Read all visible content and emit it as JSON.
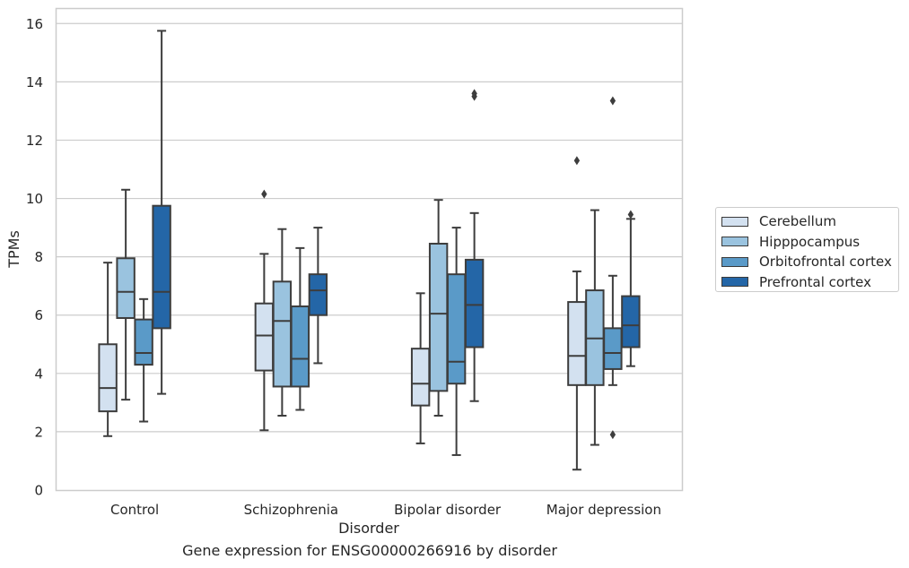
{
  "chart_data": {
    "type": "box",
    "title": "Gene expression for ENSG00000266916 by disorder",
    "xlabel": "Disorder",
    "ylabel": "TPMs",
    "ylim": [
      0,
      16.5
    ],
    "yticks": [
      0,
      2,
      4,
      6,
      8,
      10,
      12,
      14,
      16
    ],
    "categories": [
      "Control",
      "Schizophrenia",
      "Bipolar disorder",
      "Major depression"
    ],
    "grid": "horizontal",
    "legend_position": "right",
    "series": [
      {
        "name": "Cerebellum",
        "color": "#d3e1f0",
        "boxes": [
          {
            "whislo": 1.85,
            "q1": 2.7,
            "med": 3.5,
            "q3": 5.0,
            "whishi": 7.8,
            "fliers": []
          },
          {
            "whislo": 2.05,
            "q1": 4.1,
            "med": 5.3,
            "q3": 6.4,
            "whishi": 8.1,
            "fliers": [
              10.15
            ]
          },
          {
            "whislo": 1.6,
            "q1": 2.9,
            "med": 3.65,
            "q3": 4.85,
            "whishi": 6.75,
            "fliers": []
          },
          {
            "whislo": 0.7,
            "q1": 3.6,
            "med": 4.6,
            "q3": 6.45,
            "whishi": 7.5,
            "fliers": [
              11.3
            ]
          }
        ]
      },
      {
        "name": "Hipppocampus",
        "color": "#9ac3df",
        "boxes": [
          {
            "whislo": 3.1,
            "q1": 5.9,
            "med": 6.8,
            "q3": 7.95,
            "whishi": 10.3,
            "fliers": []
          },
          {
            "whislo": 2.55,
            "q1": 3.55,
            "med": 5.8,
            "q3": 7.15,
            "whishi": 8.95,
            "fliers": []
          },
          {
            "whislo": 2.55,
            "q1": 3.4,
            "med": 6.05,
            "q3": 8.45,
            "whishi": 9.95,
            "fliers": []
          },
          {
            "whislo": 1.55,
            "q1": 3.6,
            "med": 5.2,
            "q3": 6.85,
            "whishi": 9.6,
            "fliers": []
          }
        ]
      },
      {
        "name": "Orbitofrontal cortex",
        "color": "#5a9ac8",
        "boxes": [
          {
            "whislo": 2.35,
            "q1": 4.3,
            "med": 4.7,
            "q3": 5.85,
            "whishi": 6.55,
            "fliers": []
          },
          {
            "whislo": 2.75,
            "q1": 3.55,
            "med": 4.5,
            "q3": 6.3,
            "whishi": 8.3,
            "fliers": []
          },
          {
            "whislo": 1.2,
            "q1": 3.65,
            "med": 4.4,
            "q3": 7.4,
            "whishi": 9.0,
            "fliers": []
          },
          {
            "whislo": 3.6,
            "q1": 4.15,
            "med": 4.7,
            "q3": 5.55,
            "whishi": 7.35,
            "fliers": [
              1.9,
              13.35
            ]
          }
        ]
      },
      {
        "name": "Prefrontal cortex",
        "color": "#2466a7",
        "boxes": [
          {
            "whislo": 3.3,
            "q1": 5.55,
            "med": 6.8,
            "q3": 9.75,
            "whishi": 15.75,
            "fliers": []
          },
          {
            "whislo": 4.35,
            "q1": 6.0,
            "med": 6.85,
            "q3": 7.4,
            "whishi": 9.0,
            "fliers": []
          },
          {
            "whislo": 3.05,
            "q1": 4.9,
            "med": 6.35,
            "q3": 7.9,
            "whishi": 9.5,
            "fliers": [
              13.5,
              13.6
            ]
          },
          {
            "whislo": 4.25,
            "q1": 4.9,
            "med": 5.65,
            "q3": 6.65,
            "whishi": 9.3,
            "fliers": [
              9.45
            ]
          }
        ]
      }
    ]
  }
}
